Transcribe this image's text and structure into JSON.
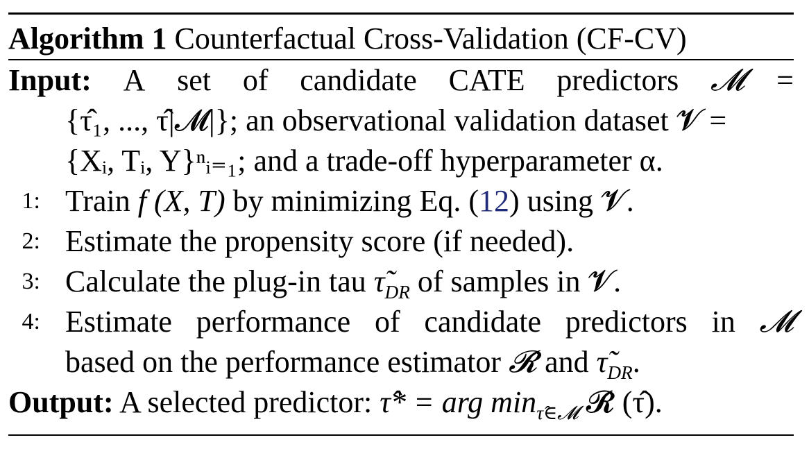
{
  "algorithm": {
    "tag": "Algorithm 1",
    "title": "Counterfactual Cross-Validation (CF-CV)",
    "input_label": "Input:",
    "input_text_1_words": [
      "A",
      "set",
      "of",
      "candidate",
      "CATE",
      "predictors",
      "𝓜",
      "="
    ],
    "input_text_2": "{τ̂₁, ..., τ̂|𝓜|}; an observational validation dataset 𝓥 =",
    "input_text_3": "{Xᵢ, Tᵢ, Y}ⁿᵢ₌₁; and a trade-off hyperparameter α.",
    "steps": [
      {
        "num": "1:",
        "prefix": "Train ",
        "math1": "f (X, T)",
        "middle": " by minimizing Eq. (",
        "ref": "12",
        "suffix": ") using 𝓥."
      },
      {
        "num": "2:",
        "text": "Estimate the propensity score (if needed)."
      },
      {
        "num": "3:",
        "prefix": "Calculate the plug-in tau ",
        "math1": "τ̃",
        "sub1": "DR",
        "suffix": " of samples in 𝓥."
      },
      {
        "num": "4:",
        "line1_words": [
          "Estimate",
          "performance",
          "of",
          "candidate",
          "predictors",
          "in",
          "𝓜"
        ],
        "line2_prefix": "based on the performance estimator ",
        "line2_math": "𝓡̂",
        "line2_mid": " and ",
        "line2_tau": "τ̃",
        "line2_sub": "DR",
        "line2_suffix": "."
      }
    ],
    "output_label": "Output:",
    "output_prefix": "A selected predictor: ",
    "output_math": "τ̂* = arg min",
    "output_sub": "τ̂∈𝓜",
    "output_suffix": " 𝓡̂ (τ̂)."
  }
}
